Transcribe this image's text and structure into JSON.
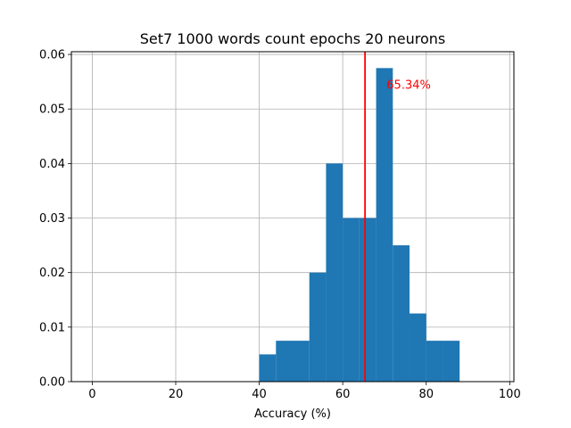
{
  "chart_data": {
    "type": "bar",
    "title": "Set7 1000 words count epochs 20 neurons",
    "xlabel": "Accuracy (%)",
    "ylabel": "",
    "xlim": [
      -5,
      101
    ],
    "ylim": [
      0,
      0.0605
    ],
    "xticks": [
      0,
      20,
      40,
      60,
      80,
      100
    ],
    "xtick_labels": [
      "0",
      "20",
      "40",
      "60",
      "80",
      "100"
    ],
    "yticks": [
      0,
      0.01,
      0.02,
      0.03,
      0.04,
      0.05,
      0.06
    ],
    "ytick_labels": [
      "0.00",
      "0.01",
      "0.02",
      "0.03",
      "0.04",
      "0.05",
      "0.06"
    ],
    "grid": true,
    "bins": [
      {
        "x0": 40,
        "x1": 44,
        "value": 0.005
      },
      {
        "x0": 44,
        "x1": 48,
        "value": 0.0075
      },
      {
        "x0": 48,
        "x1": 52,
        "value": 0.0075
      },
      {
        "x0": 52,
        "x1": 56,
        "value": 0.02
      },
      {
        "x0": 56,
        "x1": 60,
        "value": 0.04
      },
      {
        "x0": 60,
        "x1": 64,
        "value": 0.03
      },
      {
        "x0": 64,
        "x1": 68,
        "value": 0.03
      },
      {
        "x0": 68,
        "x1": 72,
        "value": 0.0575
      },
      {
        "x0": 72,
        "x1": 76,
        "value": 0.025
      },
      {
        "x0": 76,
        "x1": 80,
        "value": 0.0125
      },
      {
        "x0": 80,
        "x1": 84,
        "value": 0.0075
      },
      {
        "x0": 84,
        "x1": 88,
        "value": 0.0075
      }
    ],
    "vline": {
      "x": 65.34,
      "color": "#ff0000"
    },
    "annotation": {
      "text": "65.34%",
      "x": 70.5,
      "y": 0.0545,
      "color": "#ff0000"
    },
    "bar_color": "#1f77b4"
  }
}
